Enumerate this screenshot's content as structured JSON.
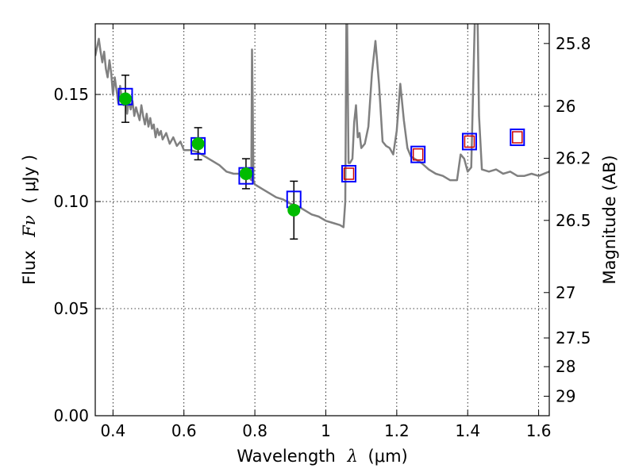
{
  "chart_data": {
    "type": "line",
    "xlabel_main": "Wavelength",
    "xlabel_symbol": "λ",
    "xlabel_unit": "(μm)",
    "ylabel_main": "Flux",
    "ylabel_symbol": "Fν",
    "ylabel_unit": "( μJy )",
    "y2label": "Magnitude (AB)",
    "xlim": [
      0.35,
      1.63
    ],
    "ylim": [
      0.0,
      0.183
    ],
    "grid": true,
    "x_ticks": [
      0.4,
      0.6,
      0.8,
      1.0,
      1.2,
      1.4,
      1.6
    ],
    "x_tick_labels": [
      "0.4",
      "0.6",
      "0.8",
      "1",
      "1.2",
      "1.4",
      "1.6"
    ],
    "y_ticks": [
      0.0,
      0.05,
      0.1,
      0.15
    ],
    "y_tick_labels": [
      "0.00",
      "0.05",
      "0.10",
      "0.15"
    ],
    "y2_ticks": [
      {
        "flux": 0.1738,
        "label": "25.8"
      },
      {
        "flux": 0.1445,
        "label": "26"
      },
      {
        "flux": 0.1202,
        "label": "26.2"
      },
      {
        "flux": 0.0912,
        "label": "26.5"
      },
      {
        "flux": 0.0575,
        "label": "27"
      },
      {
        "flux": 0.0363,
        "label": "27.5"
      },
      {
        "flux": 0.0229,
        "label": "28"
      },
      {
        "flux": 0.0091,
        "label": "29"
      }
    ],
    "series": [
      {
        "kind": "model-spectrum",
        "color": "#808080",
        "x": [
          0.35,
          0.355,
          0.36,
          0.365,
          0.37,
          0.375,
          0.38,
          0.385,
          0.39,
          0.395,
          0.4,
          0.405,
          0.41,
          0.415,
          0.42,
          0.425,
          0.43,
          0.435,
          0.44,
          0.445,
          0.45,
          0.455,
          0.46,
          0.465,
          0.47,
          0.475,
          0.48,
          0.485,
          0.49,
          0.495,
          0.5,
          0.505,
          0.51,
          0.515,
          0.52,
          0.525,
          0.53,
          0.535,
          0.54,
          0.55,
          0.56,
          0.57,
          0.58,
          0.59,
          0.6,
          0.62,
          0.64,
          0.66,
          0.68,
          0.7,
          0.72,
          0.74,
          0.76,
          0.78,
          0.79,
          0.792,
          0.794,
          0.796,
          0.8,
          0.82,
          0.84,
          0.86,
          0.88,
          0.9,
          0.92,
          0.94,
          0.96,
          0.98,
          1.0,
          1.02,
          1.04,
          1.05,
          1.055,
          1.058,
          1.06,
          1.064,
          1.068,
          1.075,
          1.08,
          1.085,
          1.09,
          1.095,
          1.1,
          1.11,
          1.12,
          1.13,
          1.14,
          1.15,
          1.16,
          1.17,
          1.18,
          1.19,
          1.2,
          1.21,
          1.22,
          1.23,
          1.24,
          1.25,
          1.27,
          1.29,
          1.31,
          1.33,
          1.35,
          1.37,
          1.38,
          1.39,
          1.4,
          1.41,
          1.42,
          1.425,
          1.428,
          1.432,
          1.44,
          1.46,
          1.48,
          1.5,
          1.52,
          1.54,
          1.56,
          1.58,
          1.6,
          1.63
        ],
        "y": [
          0.168,
          0.172,
          0.176,
          0.17,
          0.165,
          0.17,
          0.162,
          0.158,
          0.166,
          0.16,
          0.15,
          0.158,
          0.152,
          0.146,
          0.154,
          0.148,
          0.145,
          0.15,
          0.141,
          0.148,
          0.143,
          0.147,
          0.14,
          0.144,
          0.141,
          0.138,
          0.145,
          0.14,
          0.136,
          0.141,
          0.135,
          0.139,
          0.134,
          0.136,
          0.13,
          0.134,
          0.131,
          0.133,
          0.129,
          0.132,
          0.127,
          0.13,
          0.126,
          0.128,
          0.124,
          0.124,
          0.123,
          0.121,
          0.119,
          0.117,
          0.114,
          0.113,
          0.113,
          0.112,
          0.11,
          0.171,
          0.145,
          0.11,
          0.108,
          0.106,
          0.104,
          0.102,
          0.101,
          0.099,
          0.098,
          0.096,
          0.094,
          0.093,
          0.091,
          0.09,
          0.089,
          0.088,
          0.1,
          0.185,
          0.185,
          0.118,
          0.118,
          0.12,
          0.137,
          0.145,
          0.13,
          0.132,
          0.125,
          0.127,
          0.135,
          0.16,
          0.175,
          0.155,
          0.128,
          0.126,
          0.125,
          0.122,
          0.133,
          0.155,
          0.138,
          0.125,
          0.121,
          0.12,
          0.118,
          0.115,
          0.113,
          0.112,
          0.11,
          0.11,
          0.122,
          0.12,
          0.114,
          0.116,
          0.185,
          0.185,
          0.185,
          0.14,
          0.115,
          0.114,
          0.115,
          0.113,
          0.114,
          0.112,
          0.112,
          0.113,
          0.112,
          0.114
        ]
      },
      {
        "kind": "observed-points",
        "color": "#00bb00",
        "x": [
          0.435,
          0.64,
          0.775,
          0.91
        ],
        "y": [
          0.148,
          0.127,
          0.113,
          0.096
        ],
        "yerr": [
          0.011,
          0.0075,
          0.007,
          0.0135
        ]
      },
      {
        "kind": "model-photometry-box",
        "color": "#0000ff",
        "x": [
          0.435,
          0.64,
          0.775,
          0.91,
          1.065,
          1.26,
          1.405,
          1.54
        ],
        "y": [
          0.149,
          0.126,
          0.112,
          0.101,
          0.113,
          0.122,
          0.128,
          0.13
        ]
      },
      {
        "kind": "nir-photometry-box",
        "color": "#cc0000",
        "x": [
          1.065,
          1.26,
          1.405,
          1.54
        ],
        "y": [
          0.113,
          0.122,
          0.128,
          0.13
        ]
      }
    ]
  }
}
